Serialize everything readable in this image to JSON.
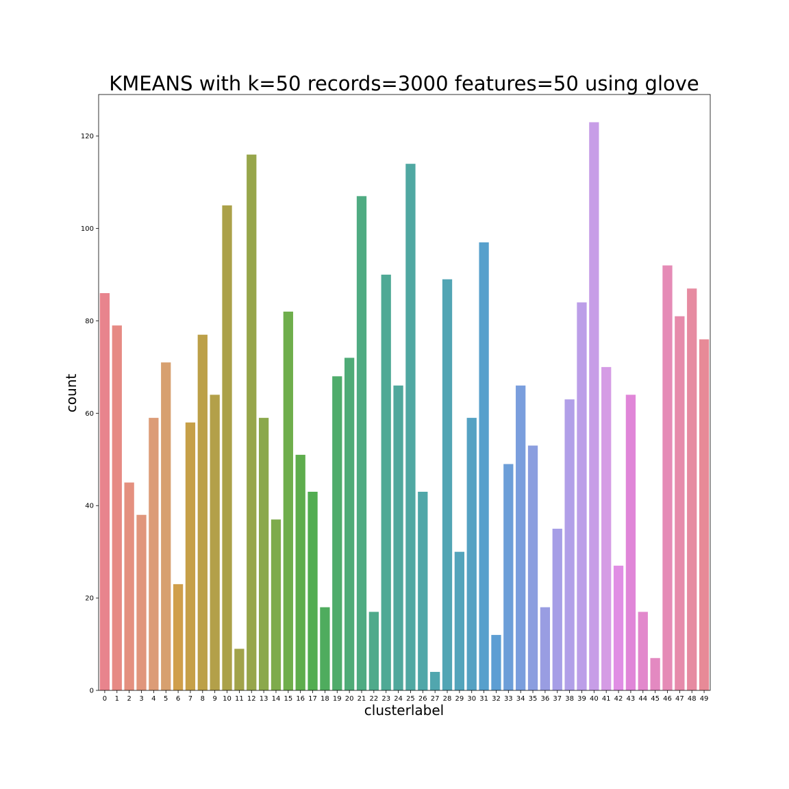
{
  "chart_data": {
    "type": "bar",
    "title": "KMEANS with k=50 records=3000 features=50 using glove",
    "xlabel": "clusterlabel",
    "ylabel": "count",
    "ylim": [
      0,
      129
    ],
    "yticks": [
      0,
      20,
      40,
      60,
      80,
      100,
      120
    ],
    "grid": false,
    "legend": "none",
    "categories": [
      "0",
      "1",
      "2",
      "3",
      "4",
      "5",
      "6",
      "7",
      "8",
      "9",
      "10",
      "11",
      "12",
      "13",
      "14",
      "15",
      "16",
      "17",
      "18",
      "19",
      "20",
      "21",
      "22",
      "23",
      "24",
      "25",
      "26",
      "27",
      "28",
      "29",
      "30",
      "31",
      "32",
      "33",
      "34",
      "35",
      "36",
      "37",
      "38",
      "39",
      "40",
      "41",
      "42",
      "43",
      "44",
      "45",
      "46",
      "47",
      "48",
      "49"
    ],
    "values": [
      86,
      79,
      45,
      38,
      59,
      71,
      23,
      58,
      77,
      64,
      105,
      9,
      116,
      59,
      37,
      82,
      51,
      43,
      18,
      68,
      72,
      107,
      17,
      90,
      66,
      114,
      43,
      4,
      89,
      30,
      59,
      97,
      12,
      49,
      66,
      53,
      18,
      35,
      63,
      84,
      123,
      70,
      27,
      64,
      17,
      7,
      92,
      81,
      87,
      76
    ],
    "colors": [
      "#e8848d",
      "#e68a84",
      "#e4907f",
      "#e0967c",
      "#dc9c77",
      "#d7a06f",
      "#d09f4b",
      "#c6a048",
      "#bca048",
      "#b3a049",
      "#aba149",
      "#a1a34a",
      "#97a64b",
      "#8ba84c",
      "#7eab4c",
      "#6fae4c",
      "#5ead4d",
      "#52ad51",
      "#4fac5e",
      "#4fac6b",
      "#4fab77",
      "#4fab82",
      "#4faa8b",
      "#4fa995",
      "#50a89c",
      "#50a8a2",
      "#50a7a8",
      "#51a6ae",
      "#52a5b4",
      "#53a4bb",
      "#55a2c3",
      "#57a0cc",
      "#5d9ed3",
      "#6c9ed8",
      "#7a9edd",
      "#8b9edf",
      "#999de2",
      "#a69ee6",
      "#b19fe8",
      "#bc9ee8",
      "#c79de7",
      "#d59ce5",
      "#e08ee4",
      "#e086d8",
      "#e288cc",
      "#e389c1",
      "#e58bb6",
      "#e68bab",
      "#e68ba1",
      "#e78a97"
    ]
  }
}
